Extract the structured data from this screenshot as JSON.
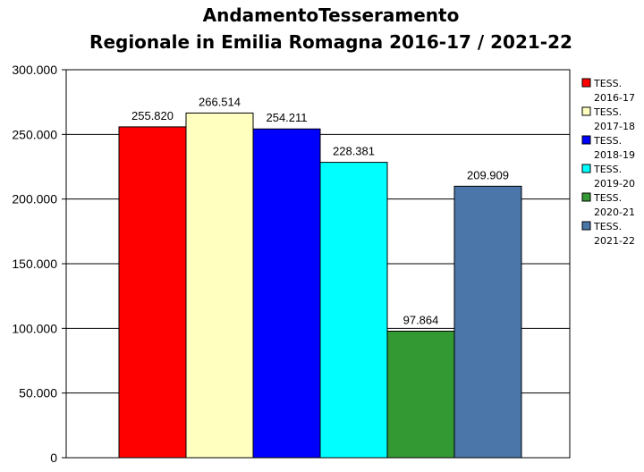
{
  "chart_data": {
    "type": "bar",
    "title_line1": "AndamentoTesseramento",
    "title_line2": "Regionale in Emilia Romagna 2016-17 / 2021-22",
    "xlabel": "",
    "ylabel": "",
    "ylim": [
      0,
      300000
    ],
    "y_ticks": [
      {
        "value": 0,
        "label": "0"
      },
      {
        "value": 50000,
        "label": "50.000"
      },
      {
        "value": 100000,
        "label": "100.000"
      },
      {
        "value": 150000,
        "label": "150.000"
      },
      {
        "value": 200000,
        "label": "200.000"
      },
      {
        "value": 250000,
        "label": "250.000"
      },
      {
        "value": 300000,
        "label": "300.000"
      }
    ],
    "grid": true,
    "legend_position": "right",
    "series": [
      {
        "name_line1": "TESS.",
        "name_line2": "2016-17",
        "value": 255820,
        "value_label": "255.820",
        "color": "#ff0000"
      },
      {
        "name_line1": "TESS.",
        "name_line2": "2017-18",
        "value": 266514,
        "value_label": "266.514",
        "color": "#ffffc0"
      },
      {
        "name_line1": "TESS.",
        "name_line2": "2018-19",
        "value": 254211,
        "value_label": "254.211",
        "color": "#0000ff"
      },
      {
        "name_line1": "TESS.",
        "name_line2": "2019-20",
        "value": 228381,
        "value_label": "228.381",
        "color": "#00ffff"
      },
      {
        "name_line1": "TESS.",
        "name_line2": "2020-21",
        "value": 97864,
        "value_label": "97.864",
        "color": "#339933"
      },
      {
        "name_line1": "TESS.",
        "name_line2": "2021-22",
        "value": 209909,
        "value_label": "209.909",
        "color": "#4a76aa"
      }
    ]
  }
}
